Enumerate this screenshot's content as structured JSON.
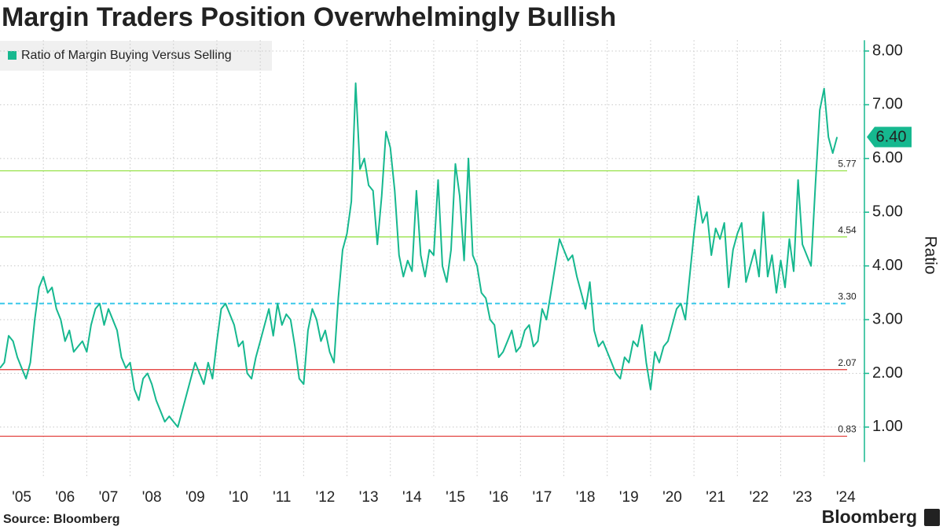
{
  "chart_data": {
    "type": "line",
    "title": "Margin Traders Position Overwhelmingly Bullish",
    "y_label": "Ratio",
    "source": "Source: Bloomberg",
    "brand": "Bloomberg",
    "legend_position": "top-left",
    "grid": true,
    "x": [
      2005.0,
      2005.1,
      2005.2,
      2005.3,
      2005.4,
      2005.5,
      2005.6,
      2005.7,
      2005.8,
      2005.9,
      2006.0,
      2006.1,
      2006.2,
      2006.3,
      2006.4,
      2006.5,
      2006.6,
      2006.7,
      2006.8,
      2006.9,
      2007.0,
      2007.1,
      2007.2,
      2007.3,
      2007.4,
      2007.5,
      2007.6,
      2007.7,
      2007.8,
      2007.9,
      2008.0,
      2008.1,
      2008.2,
      2008.3,
      2008.4,
      2008.5,
      2008.6,
      2008.7,
      2008.8,
      2008.9,
      2009.0,
      2009.1,
      2009.2,
      2009.3,
      2009.4,
      2009.5,
      2009.6,
      2009.7,
      2009.8,
      2009.9,
      2010.0,
      2010.1,
      2010.2,
      2010.3,
      2010.4,
      2010.5,
      2010.6,
      2010.7,
      2010.8,
      2010.9,
      2011.0,
      2011.1,
      2011.2,
      2011.3,
      2011.4,
      2011.5,
      2011.6,
      2011.7,
      2011.8,
      2011.9,
      2012.0,
      2012.1,
      2012.2,
      2012.3,
      2012.4,
      2012.5,
      2012.6,
      2012.7,
      2012.8,
      2012.9,
      2013.0,
      2013.1,
      2013.2,
      2013.3,
      2013.4,
      2013.5,
      2013.6,
      2013.7,
      2013.8,
      2013.9,
      2014.0,
      2014.1,
      2014.2,
      2014.3,
      2014.4,
      2014.5,
      2014.6,
      2014.7,
      2014.8,
      2014.9,
      2015.0,
      2015.1,
      2015.2,
      2015.3,
      2015.4,
      2015.5,
      2015.6,
      2015.7,
      2015.8,
      2015.9,
      2016.0,
      2016.1,
      2016.2,
      2016.3,
      2016.4,
      2016.5,
      2016.6,
      2016.7,
      2016.8,
      2016.9,
      2017.0,
      2017.1,
      2017.2,
      2017.3,
      2017.4,
      2017.5,
      2017.6,
      2017.7,
      2017.8,
      2017.9,
      2018.0,
      2018.1,
      2018.2,
      2018.3,
      2018.4,
      2018.5,
      2018.6,
      2018.7,
      2018.8,
      2018.9,
      2019.0,
      2019.1,
      2019.2,
      2019.3,
      2019.4,
      2019.5,
      2019.6,
      2019.7,
      2019.8,
      2019.9,
      2020.0,
      2020.1,
      2020.2,
      2020.3,
      2020.4,
      2020.5,
      2020.6,
      2020.7,
      2020.8,
      2020.9,
      2021.0,
      2021.1,
      2021.2,
      2021.3,
      2021.4,
      2021.5,
      2021.6,
      2021.7,
      2021.8,
      2021.9,
      2022.0,
      2022.1,
      2022.2,
      2022.3,
      2022.4,
      2022.5,
      2022.6,
      2022.7,
      2022.8,
      2022.9,
      2023.0,
      2023.1,
      2023.2,
      2023.3,
      2023.4,
      2023.5,
      2023.6,
      2023.7,
      2023.8,
      2023.9,
      2024.0,
      2024.1,
      2024.2,
      2024.3
    ],
    "series": [
      {
        "name": "Ratio of Margin Buying Versus Selling",
        "color": "#16b88f",
        "values": [
          2.1,
          2.2,
          2.7,
          2.6,
          2.3,
          2.1,
          1.9,
          2.2,
          3.0,
          3.6,
          3.8,
          3.5,
          3.6,
          3.2,
          3.0,
          2.6,
          2.8,
          2.4,
          2.5,
          2.6,
          2.4,
          2.9,
          3.2,
          3.3,
          2.9,
          3.2,
          3.0,
          2.8,
          2.3,
          2.1,
          2.2,
          1.7,
          1.5,
          1.9,
          2.0,
          1.8,
          1.5,
          1.3,
          1.1,
          1.2,
          1.1,
          1.0,
          1.3,
          1.6,
          1.9,
          2.2,
          2.0,
          1.8,
          2.2,
          1.9,
          2.6,
          3.2,
          3.3,
          3.1,
          2.9,
          2.5,
          2.6,
          2.0,
          1.9,
          2.3,
          2.6,
          2.9,
          3.2,
          2.7,
          3.3,
          2.9,
          3.1,
          3.0,
          2.5,
          1.9,
          1.8,
          2.8,
          3.2,
          3.0,
          2.6,
          2.8,
          2.4,
          2.2,
          3.4,
          4.3,
          4.6,
          5.2,
          7.4,
          5.8,
          6.0,
          5.5,
          5.4,
          4.4,
          5.3,
          6.5,
          6.2,
          5.4,
          4.2,
          3.8,
          4.1,
          3.9,
          5.4,
          4.2,
          3.8,
          4.3,
          4.2,
          5.6,
          4.0,
          3.7,
          4.3,
          5.9,
          5.3,
          4.1,
          6.0,
          4.2,
          4.0,
          3.5,
          3.4,
          3.0,
          2.9,
          2.3,
          2.4,
          2.6,
          2.8,
          2.4,
          2.5,
          2.8,
          2.9,
          2.5,
          2.6,
          3.2,
          3.0,
          3.5,
          4.0,
          4.5,
          4.3,
          4.1,
          4.2,
          3.8,
          3.5,
          3.2,
          3.7,
          2.8,
          2.5,
          2.6,
          2.4,
          2.2,
          2.0,
          1.9,
          2.3,
          2.2,
          2.6,
          2.5,
          2.9,
          2.2,
          1.7,
          2.4,
          2.2,
          2.5,
          2.6,
          2.9,
          3.2,
          3.3,
          3.0,
          3.8,
          4.6,
          5.3,
          4.8,
          5.0,
          4.2,
          4.7,
          4.5,
          4.8,
          3.6,
          4.3,
          4.6,
          4.8,
          3.7,
          4.0,
          4.3,
          3.8,
          5.0,
          3.8,
          4.2,
          3.5,
          4.1,
          3.6,
          4.5,
          3.9,
          5.6,
          4.4,
          4.2,
          4.0,
          5.5,
          6.9,
          7.3,
          6.4,
          6.1,
          6.4
        ],
        "last_value_label": "6.40"
      }
    ],
    "xlim": [
      2005,
      2024.93
    ],
    "xticks": [
      {
        "value": 2005,
        "label": "'05"
      },
      {
        "value": 2006,
        "label": "'06"
      },
      {
        "value": 2007,
        "label": "'07"
      },
      {
        "value": 2008,
        "label": "'08"
      },
      {
        "value": 2009,
        "label": "'09"
      },
      {
        "value": 2010,
        "label": "'10"
      },
      {
        "value": 2011,
        "label": "'11"
      },
      {
        "value": 2012,
        "label": "'12"
      },
      {
        "value": 2013,
        "label": "'13"
      },
      {
        "value": 2014,
        "label": "'14"
      },
      {
        "value": 2015,
        "label": "'15"
      },
      {
        "value": 2016,
        "label": "'16"
      },
      {
        "value": 2017,
        "label": "'17"
      },
      {
        "value": 2018,
        "label": "'18"
      },
      {
        "value": 2019,
        "label": "'19"
      },
      {
        "value": 2020,
        "label": "'20"
      },
      {
        "value": 2021,
        "label": "'21"
      },
      {
        "value": 2022,
        "label": "'22"
      },
      {
        "value": 2023,
        "label": "'23"
      },
      {
        "value": 2024,
        "label": "'24"
      }
    ],
    "ylim": [
      0.35,
      8.2
    ],
    "yticks": [
      {
        "value": 1,
        "label": "1.00"
      },
      {
        "value": 2,
        "label": "2.00"
      },
      {
        "value": 3,
        "label": "3.00"
      },
      {
        "value": 4,
        "label": "4.00"
      },
      {
        "value": 5,
        "label": "5.00"
      },
      {
        "value": 6,
        "label": "6.00"
      },
      {
        "value": 7,
        "label": "7.00"
      },
      {
        "value": 8,
        "label": "8.00"
      }
    ],
    "reference_lines": [
      {
        "value": 5.77,
        "label": "5.77",
        "color": "#8fe03c",
        "style": "solid"
      },
      {
        "value": 4.54,
        "label": "4.54",
        "color": "#8fe03c",
        "style": "solid"
      },
      {
        "value": 3.3,
        "label": "3.30",
        "color": "#2ec4e8",
        "style": "dashed"
      },
      {
        "value": 2.07,
        "label": "2.07",
        "color": "#e0302e",
        "style": "solid"
      },
      {
        "value": 0.83,
        "label": "0.83",
        "color": "#e0302e",
        "style": "solid"
      }
    ]
  }
}
